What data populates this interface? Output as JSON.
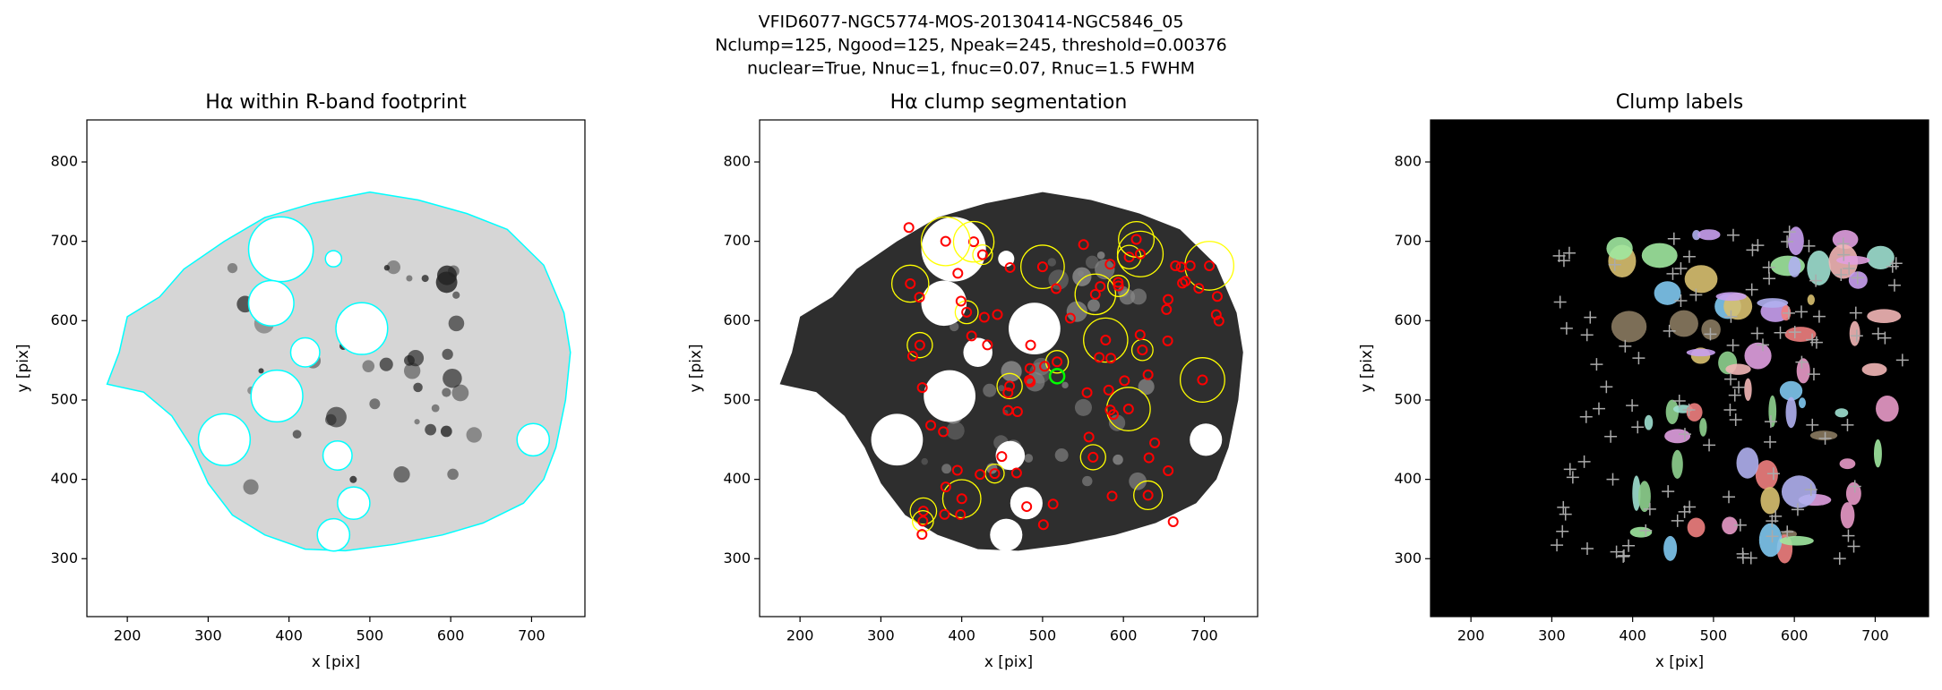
{
  "title": [
    "VFID6077-NGC5774-MOS-20130414-NGC5846_05",
    "Nclump=125, Ngood=125, Npeak=245, threshold=0.00376",
    "nuclear=True, Nnuc=1, fnuc=0.07, Rnuc=1.5 FWHM"
  ],
  "chart_data": [
    {
      "type": "image",
      "style": "footprint",
      "title": "Hα within R-band footprint",
      "xlabel": "x [pix]",
      "ylabel": "y [pix]",
      "xlim": [
        150,
        766
      ],
      "ylim": [
        227,
        853
      ],
      "xticks": [
        200,
        300,
        400,
        500,
        600,
        700
      ],
      "yticks": [
        300,
        400,
        500,
        600,
        700,
        800
      ]
    },
    {
      "type": "image",
      "style": "segmentation",
      "title": "Hα clump segmentation",
      "xlabel": "x [pix]",
      "ylabel": "y [pix]",
      "xlim": [
        150,
        766
      ],
      "ylim": [
        227,
        853
      ],
      "xticks": [
        200,
        300,
        400,
        500,
        600,
        700
      ],
      "yticks": [
        300,
        400,
        500,
        600,
        700,
        800
      ]
    },
    {
      "type": "image",
      "style": "labels",
      "title": "Clump labels",
      "xlabel": "x [pix]",
      "ylabel": "y [pix]",
      "xlim": [
        150,
        766
      ],
      "ylim": [
        227,
        853
      ],
      "xticks": [
        200,
        300,
        400,
        500,
        600,
        700
      ],
      "yticks": [
        300,
        400,
        500,
        600,
        700,
        800
      ]
    }
  ]
}
